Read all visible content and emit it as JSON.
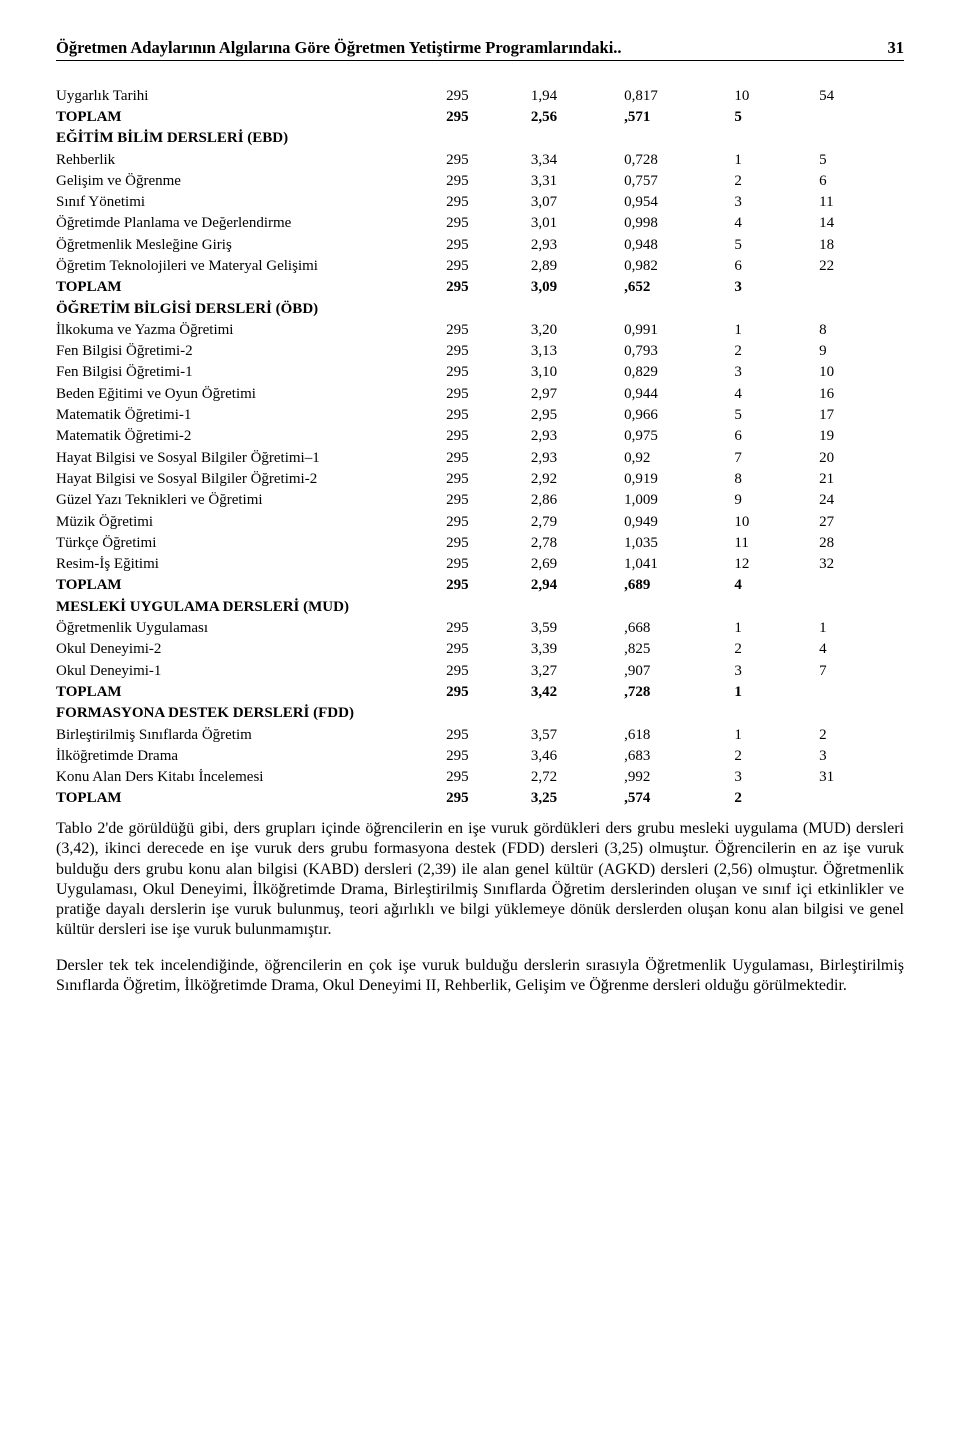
{
  "header": {
    "title": "Öğretmen Adaylarının Algılarına Göre Öğretmen Yetiştirme Programlarındaki..",
    "page": "31"
  },
  "table": {
    "rows": [
      {
        "label": "Uygarlık Tarihi",
        "n": "295",
        "mean": "1,94",
        "sd": "0,817",
        "r1": "10",
        "r2": "54"
      },
      {
        "label": "TOPLAM",
        "n": "295",
        "mean": "2,56",
        "sd": ",571",
        "r1": "5",
        "r2": "",
        "bold": true
      },
      {
        "label": "EĞİTİM BİLİM DERSLERİ (EBD)",
        "section": true
      },
      {
        "label": "Rehberlik",
        "n": "295",
        "mean": "3,34",
        "sd": "0,728",
        "r1": "1",
        "r2": "5"
      },
      {
        "label": "Gelişim ve Öğrenme",
        "n": "295",
        "mean": "3,31",
        "sd": "0,757",
        "r1": "2",
        "r2": "6"
      },
      {
        "label": "Sınıf Yönetimi",
        "n": "295",
        "mean": "3,07",
        "sd": "0,954",
        "r1": "3",
        "r2": "11"
      },
      {
        "label": "Öğretimde Planlama ve Değerlendirme",
        "n": "295",
        "mean": "3,01",
        "sd": "0,998",
        "r1": "4",
        "r2": "14"
      },
      {
        "label": "Öğretmenlik Mesleğine Giriş",
        "n": "295",
        "mean": "2,93",
        "sd": "0,948",
        "r1": "5",
        "r2": "18"
      },
      {
        "label": "Öğretim Teknolojileri ve Materyal Gelişimi",
        "n": "295",
        "mean": "2,89",
        "sd": "0,982",
        "r1": "6",
        "r2": "22"
      },
      {
        "label": "TOPLAM",
        "n": "295",
        "mean": "3,09",
        "sd": ",652",
        "r1": "3",
        "r2": "",
        "bold": true
      },
      {
        "label": "ÖĞRETİM BİLGİSİ DERSLERİ (ÖBD)",
        "section": true
      },
      {
        "label": "İlkokuma ve Yazma Öğretimi",
        "n": "295",
        "mean": "3,20",
        "sd": "0,991",
        "r1": "1",
        "r2": "8"
      },
      {
        "label": "Fen Bilgisi Öğretimi-2",
        "n": "295",
        "mean": "3,13",
        "sd": "0,793",
        "r1": "2",
        "r2": "9"
      },
      {
        "label": "Fen Bilgisi Öğretimi-1",
        "n": "295",
        "mean": "3,10",
        "sd": "0,829",
        "r1": "3",
        "r2": "10"
      },
      {
        "label": "Beden Eğitimi ve Oyun Öğretimi",
        "n": "295",
        "mean": "2,97",
        "sd": "0,944",
        "r1": "4",
        "r2": "16"
      },
      {
        "label": "Matematik Öğretimi-1",
        "n": "295",
        "mean": "2,95",
        "sd": "0,966",
        "r1": "5",
        "r2": "17"
      },
      {
        "label": "Matematik Öğretimi-2",
        "n": "295",
        "mean": "2,93",
        "sd": "0,975",
        "r1": "6",
        "r2": "19"
      },
      {
        "label": "Hayat Bilgisi ve Sosyal Bilgiler Öğretimi–1",
        "n": "295",
        "mean": "2,93",
        "sd": "0,92",
        "r1": "7",
        "r2": "20"
      },
      {
        "label": "Hayat Bilgisi ve Sosyal Bilgiler Öğretimi-2",
        "n": "295",
        "mean": "2,92",
        "sd": "0,919",
        "r1": "8",
        "r2": "21"
      },
      {
        "label": "Güzel Yazı Teknikleri ve Öğretimi",
        "n": "295",
        "mean": "2,86",
        "sd": "1,009",
        "r1": "9",
        "r2": "24"
      },
      {
        "label": "Müzik Öğretimi",
        "n": "295",
        "mean": "2,79",
        "sd": "0,949",
        "r1": "10",
        "r2": "27"
      },
      {
        "label": "Türkçe Öğretimi",
        "n": "295",
        "mean": "2,78",
        "sd": "1,035",
        "r1": "11",
        "r2": "28"
      },
      {
        "label": "Resim-İş Eğitimi",
        "n": "295",
        "mean": "2,69",
        "sd": "1,041",
        "r1": "12",
        "r2": "32"
      },
      {
        "label": "TOPLAM",
        "n": "295",
        "mean": "2,94",
        "sd": ",689",
        "r1": "4",
        "r2": "",
        "bold": true
      },
      {
        "label": "MESLEKİ UYGULAMA DERSLERİ (MUD)",
        "section": true
      },
      {
        "label": "Öğretmenlik Uygulaması",
        "n": "295",
        "mean": "3,59",
        "sd": ",668",
        "r1": "1",
        "r2": "1"
      },
      {
        "label": "Okul Deneyimi-2",
        "n": "295",
        "mean": "3,39",
        "sd": ",825",
        "r1": "2",
        "r2": "4"
      },
      {
        "label": "Okul Deneyimi-1",
        "n": "295",
        "mean": "3,27",
        "sd": ",907",
        "r1": "3",
        "r2": "7"
      },
      {
        "label": "TOPLAM",
        "n": "295",
        "mean": "3,42",
        "sd": ",728",
        "r1": "1",
        "r2": "",
        "bold": true
      },
      {
        "label": "FORMASYONA DESTEK DERSLERİ (FDD)",
        "section": true
      },
      {
        "label": "Birleştirilmiş Sınıflarda Öğretim",
        "n": "295",
        "mean": "3,57",
        "sd": ",618",
        "r1": "1",
        "r2": "2"
      },
      {
        "label": "İlköğretimde Drama",
        "n": "295",
        "mean": "3,46",
        "sd": ",683",
        "r1": "2",
        "r2": "3"
      },
      {
        "label": "Konu Alan Ders Kitabı İncelemesi",
        "n": "295",
        "mean": "2,72",
        "sd": ",992",
        "r1": "3",
        "r2": "31"
      },
      {
        "label": "TOPLAM",
        "n": "295",
        "mean": "3,25",
        "sd": ",574",
        "r1": "2",
        "r2": "",
        "bold": true
      }
    ]
  },
  "para1": "Tablo 2'de görüldüğü gibi, ders grupları içinde öğrencilerin en işe vuruk gördükleri ders grubu mesleki uygulama (MUD) dersleri (3,42), ikinci derecede en işe vuruk ders grubu formasyona destek (FDD) dersleri (3,25) olmuştur. Öğrencilerin en az işe vuruk bulduğu ders grubu konu alan bilgisi (KABD) dersleri (2,39) ile alan genel kültür (AGKD) dersleri (2,56) olmuştur. Öğretmenlik Uygulaması, Okul Deneyimi, İlköğretimde Drama, Birleştirilmiş Sınıflarda Öğretim derslerinden oluşan ve sınıf içi etkinlikler ve pratiğe dayalı derslerin işe vuruk bulunmuş, teori ağırlıklı ve bilgi yüklemeye dönük derslerden oluşan konu alan bilgisi ve genel kültür dersleri ise işe vuruk bulunmamıştır.",
  "para2": "Dersler tek tek incelendiğinde, öğrencilerin en çok işe vuruk bulduğu derslerin sırasıyla Öğretmenlik Uygulaması, Birleştirilmiş Sınıflarda Öğretim, İlköğretimde Drama, Okul Deneyimi II, Rehberlik, Gelişim ve Öğrenme dersleri olduğu görülmektedir."
}
